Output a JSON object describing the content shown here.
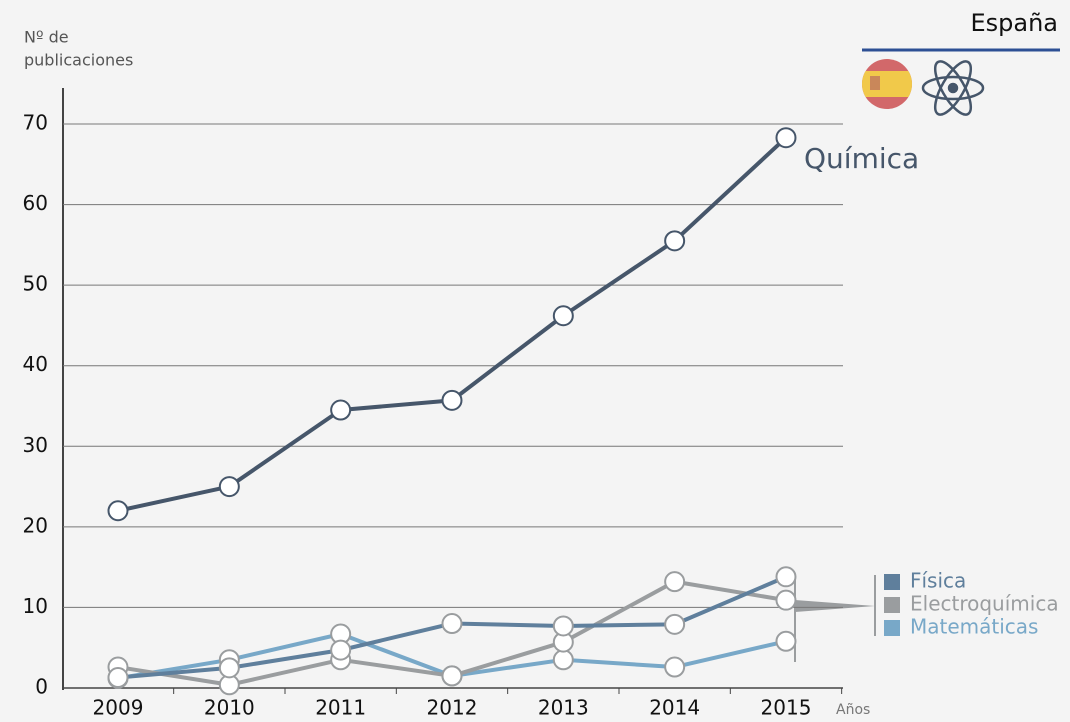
{
  "chart_data": {
    "type": "line",
    "title": "España",
    "y_label": [
      "Nº de",
      "publicaciones"
    ],
    "x_label": "Años",
    "categories": [
      "2009",
      "2010",
      "2011",
      "2012",
      "2013",
      "2014",
      "2015"
    ],
    "series": [
      {
        "name": "Química",
        "color": "#46566a",
        "values": [
          22,
          25,
          34.5,
          35.7,
          46.2,
          55.5,
          68.3
        ]
      },
      {
        "name": "Física",
        "color": "#5f7f9c",
        "values": [
          1.3,
          2.5,
          4.7,
          8,
          7.7,
          7.9,
          13.8
        ]
      },
      {
        "name": "Electroquímica",
        "color": "#9a9d9f",
        "values": [
          2.6,
          0.4,
          3.5,
          1.5,
          5.7,
          13.2,
          10.9
        ]
      },
      {
        "name": "Matemáticas",
        "color": "#78a8c8",
        "values": [
          1.2,
          3.5,
          6.7,
          1.5,
          3.5,
          2.6,
          5.8
        ]
      }
    ],
    "ylim": [
      0,
      70
    ],
    "yticks": [
      0,
      10,
      20,
      30,
      40,
      50,
      60,
      70
    ],
    "grid": true
  }
}
